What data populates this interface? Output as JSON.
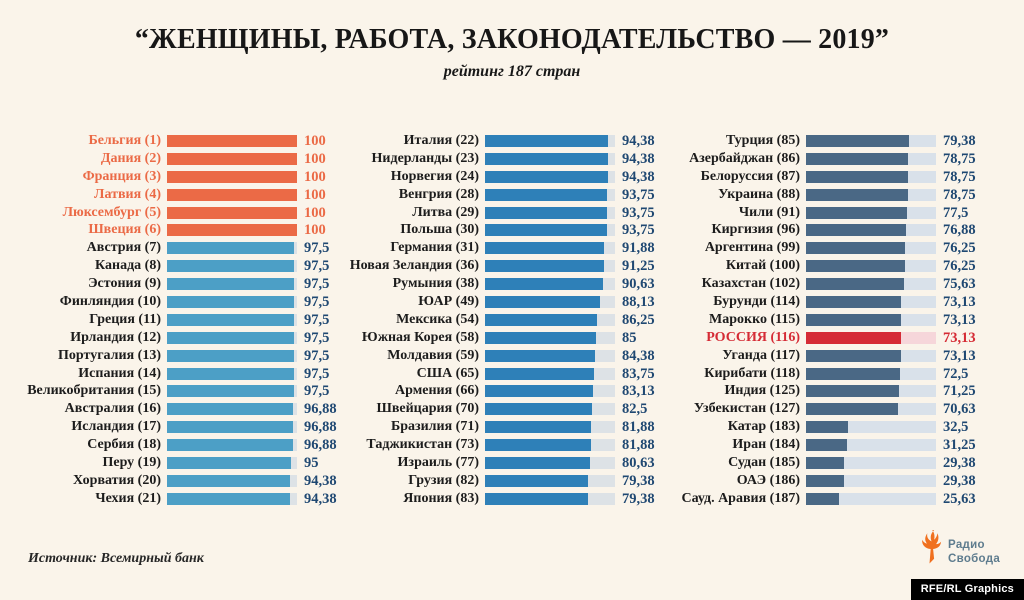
{
  "title": "“ЖЕНЩИНЫ, РАБОТА, ЗАКОНОДАТЕЛЬСТВО — 2019”",
  "subtitle": "рейтинг 187 стран",
  "source": "Источник: Всемирный банк",
  "logo": {
    "line1": "Радио",
    "line2": "Свобода",
    "credit": "RFE/RL Graphics",
    "torch_color": "#F0701F",
    "text_color": "#5E7C8E"
  },
  "colors": {
    "background": "#FAF4EA",
    "top6_orange": "#EB6A46",
    "light_blue": "#4C9FC6",
    "medium_blue": "#2E80B8",
    "slate_blue": "#4A6885",
    "russia_red": "#D52B35",
    "russia_track_pink": "#F6D6DA",
    "track_gray": "#DDE2E6",
    "value_navy": "#1F4872",
    "label_black": "#1C1C1C"
  },
  "chart_data": {
    "type": "bar",
    "orientation": "horizontal",
    "value_range": [
      0,
      100
    ],
    "title": "“ЖЕНЩИНЫ, РАБОТА, ЗАКОНОДАТЕЛЬСТВО — 2019”",
    "subtitle": "рейтинг 187 стран",
    "source": "Источник: Всемирный банк",
    "legend": "none",
    "grid": false,
    "styles": {
      "top6": {
        "bar": "#EB6A46",
        "label": "#EB6A46",
        "value": "#EB6A46",
        "track": "#DDE2E6"
      },
      "col1": {
        "bar": "#4C9FC6",
        "label": "#1C1C1C",
        "value": "#1F4872",
        "track": "#DDE2E6"
      },
      "col2": {
        "bar": "#2E80B8",
        "label": "#1C1C1C",
        "value": "#1F4872",
        "track": "#DDE2E6"
      },
      "col3": {
        "bar": "#4A6885",
        "label": "#1C1C1C",
        "value": "#1F4872",
        "track": "#D9E1EA"
      },
      "russia": {
        "bar": "#D52B35",
        "label": "#D52B35",
        "value": "#D52B35",
        "track": "#F6D6DA"
      }
    },
    "columns": [
      {
        "items": [
          {
            "country": "Бельгия",
            "rank": 1,
            "value": 100,
            "value_label": "100",
            "style": "top6"
          },
          {
            "country": "Дания",
            "rank": 2,
            "value": 100,
            "value_label": "100",
            "style": "top6"
          },
          {
            "country": "Франция",
            "rank": 3,
            "value": 100,
            "value_label": "100",
            "style": "top6"
          },
          {
            "country": "Латвия",
            "rank": 4,
            "value": 100,
            "value_label": "100",
            "style": "top6"
          },
          {
            "country": "Люксембург",
            "rank": 5,
            "value": 100,
            "value_label": "100",
            "style": "top6"
          },
          {
            "country": "Швеция",
            "rank": 6,
            "value": 100,
            "value_label": "100",
            "style": "top6"
          },
          {
            "country": "Австрия",
            "rank": 7,
            "value": 97.5,
            "value_label": "97,5",
            "style": "col1"
          },
          {
            "country": "Канада",
            "rank": 8,
            "value": 97.5,
            "value_label": "97,5",
            "style": "col1"
          },
          {
            "country": "Эстония",
            "rank": 9,
            "value": 97.5,
            "value_label": "97,5",
            "style": "col1"
          },
          {
            "country": "Финляндия",
            "rank": 10,
            "value": 97.5,
            "value_label": "97,5",
            "style": "col1"
          },
          {
            "country": "Греция",
            "rank": 11,
            "value": 97.5,
            "value_label": "97,5",
            "style": "col1"
          },
          {
            "country": "Ирландия",
            "rank": 12,
            "value": 97.5,
            "value_label": "97,5",
            "style": "col1"
          },
          {
            "country": "Португалия",
            "rank": 13,
            "value": 97.5,
            "value_label": "97,5",
            "style": "col1"
          },
          {
            "country": "Испания",
            "rank": 14,
            "value": 97.5,
            "value_label": "97,5",
            "style": "col1"
          },
          {
            "country": "Великобритания",
            "rank": 15,
            "value": 97.5,
            "value_label": "97,5",
            "style": "col1"
          },
          {
            "country": "Австралия",
            "rank": 16,
            "value": 96.88,
            "value_label": "96,88",
            "style": "col1"
          },
          {
            "country": "Исландия",
            "rank": 17,
            "value": 96.88,
            "value_label": "96,88",
            "style": "col1"
          },
          {
            "country": "Сербия",
            "rank": 18,
            "value": 96.88,
            "value_label": "96,88",
            "style": "col1"
          },
          {
            "country": "Перу",
            "rank": 19,
            "value": 95,
            "value_label": "95",
            "style": "col1"
          },
          {
            "country": "Хорватия",
            "rank": 20,
            "value": 94.38,
            "value_label": "94,38",
            "style": "col1"
          },
          {
            "country": "Чехия",
            "rank": 21,
            "value": 94.38,
            "value_label": "94,38",
            "style": "col1"
          }
        ]
      },
      {
        "items": [
          {
            "country": "Италия",
            "rank": 22,
            "value": 94.38,
            "value_label": "94,38",
            "style": "col2"
          },
          {
            "country": "Нидерланды",
            "rank": 23,
            "value": 94.38,
            "value_label": "94,38",
            "style": "col2"
          },
          {
            "country": "Норвегия",
            "rank": 24,
            "value": 94.38,
            "value_label": "94,38",
            "style": "col2"
          },
          {
            "country": "Венгрия",
            "rank": 28,
            "value": 93.75,
            "value_label": "93,75",
            "style": "col2"
          },
          {
            "country": "Литва",
            "rank": 29,
            "value": 93.75,
            "value_label": "93,75",
            "style": "col2"
          },
          {
            "country": "Польша",
            "rank": 30,
            "value": 93.75,
            "value_label": "93,75",
            "style": "col2"
          },
          {
            "country": "Германия",
            "rank": 31,
            "value": 91.88,
            "value_label": "91,88",
            "style": "col2"
          },
          {
            "country": "Новая Зеландия",
            "rank": 36,
            "value": 91.25,
            "value_label": "91,25",
            "style": "col2"
          },
          {
            "country": "Румыния",
            "rank": 38,
            "value": 90.63,
            "value_label": "90,63",
            "style": "col2"
          },
          {
            "country": "ЮАР",
            "rank": 49,
            "value": 88.13,
            "value_label": "88,13",
            "style": "col2"
          },
          {
            "country": "Мексика",
            "rank": 54,
            "value": 86.25,
            "value_label": "86,25",
            "style": "col2"
          },
          {
            "country": "Южная Корея",
            "rank": 58,
            "value": 85,
            "value_label": "85",
            "style": "col2"
          },
          {
            "country": "Молдавия",
            "rank": 59,
            "value": 84.38,
            "value_label": "84,38",
            "style": "col2"
          },
          {
            "country": "США",
            "rank": 65,
            "value": 83.75,
            "value_label": "83,75",
            "style": "col2"
          },
          {
            "country": "Армения",
            "rank": 66,
            "value": 83.13,
            "value_label": "83,13",
            "style": "col2"
          },
          {
            "country": "Швейцария",
            "rank": 70,
            "value": 82.5,
            "value_label": "82,5",
            "style": "col2"
          },
          {
            "country": "Бразилия",
            "rank": 71,
            "value": 81.88,
            "value_label": "81,88",
            "style": "col2"
          },
          {
            "country": "Таджикистан",
            "rank": 73,
            "value": 81.88,
            "value_label": "81,88",
            "style": "col2"
          },
          {
            "country": "Израиль",
            "rank": 77,
            "value": 80.63,
            "value_label": "80,63",
            "style": "col2"
          },
          {
            "country": "Грузия",
            "rank": 82,
            "value": 79.38,
            "value_label": "79,38",
            "style": "col2"
          },
          {
            "country": "Япония",
            "rank": 83,
            "value": 79.38,
            "value_label": "79,38",
            "style": "col2"
          }
        ]
      },
      {
        "items": [
          {
            "country": "Турция",
            "rank": 85,
            "value": 79.38,
            "value_label": "79,38",
            "style": "col3"
          },
          {
            "country": "Азербайджан",
            "rank": 86,
            "value": 78.75,
            "value_label": "78,75",
            "style": "col3"
          },
          {
            "country": "Белоруссия",
            "rank": 87,
            "value": 78.75,
            "value_label": "78,75",
            "style": "col3"
          },
          {
            "country": "Украина",
            "rank": 88,
            "value": 78.75,
            "value_label": "78,75",
            "style": "col3"
          },
          {
            "country": "Чили",
            "rank": 91,
            "value": 77.5,
            "value_label": "77,5",
            "style": "col3"
          },
          {
            "country": "Киргизия",
            "rank": 96,
            "value": 76.88,
            "value_label": "76,88",
            "style": "col3"
          },
          {
            "country": "Аргентина",
            "rank": 99,
            "value": 76.25,
            "value_label": "76,25",
            "style": "col3"
          },
          {
            "country": "Китай",
            "rank": 100,
            "value": 76.25,
            "value_label": "76,25",
            "style": "col3"
          },
          {
            "country": "Казахстан",
            "rank": 102,
            "value": 75.63,
            "value_label": "75,63",
            "style": "col3"
          },
          {
            "country": "Бурунди",
            "rank": 114,
            "value": 73.13,
            "value_label": "73,13",
            "style": "col3"
          },
          {
            "country": "Марокко",
            "rank": 115,
            "value": 73.13,
            "value_label": "73,13",
            "style": "col3"
          },
          {
            "country": "РОССИЯ",
            "rank": 116,
            "value": 73.13,
            "value_label": "73,13",
            "style": "russia"
          },
          {
            "country": "Уганда",
            "rank": 117,
            "value": 73.13,
            "value_label": "73,13",
            "style": "col3"
          },
          {
            "country": "Кирибати",
            "rank": 118,
            "value": 72.5,
            "value_label": "72,5",
            "style": "col3"
          },
          {
            "country": "Индия",
            "rank": 125,
            "value": 71.25,
            "value_label": "71,25",
            "style": "col3"
          },
          {
            "country": "Узбекистан",
            "rank": 127,
            "value": 70.63,
            "value_label": "70,63",
            "style": "col3"
          },
          {
            "country": "Катар",
            "rank": 183,
            "value": 32.5,
            "value_label": "32,5",
            "style": "col3"
          },
          {
            "country": "Иран",
            "rank": 184,
            "value": 31.25,
            "value_label": "31,25",
            "style": "col3"
          },
          {
            "country": "Судан",
            "rank": 185,
            "value": 29.38,
            "value_label": "29,38",
            "style": "col3"
          },
          {
            "country": "ОАЭ",
            "rank": 186,
            "value": 29.38,
            "value_label": "29,38",
            "style": "col3"
          },
          {
            "country": "Сауд. Аравия",
            "rank": 187,
            "value": 25.63,
            "value_label": "25,63",
            "style": "col3"
          }
        ]
      }
    ]
  }
}
